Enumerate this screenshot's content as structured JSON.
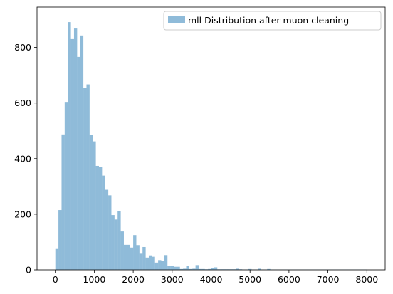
{
  "chart_data": {
    "type": "bar",
    "subtype": "histogram",
    "title": "",
    "xlabel": "",
    "ylabel": "",
    "xlim": [
      -470,
      8470
    ],
    "ylim": [
      0,
      945
    ],
    "x_ticks": [
      0,
      1000,
      2000,
      3000,
      4000,
      5000,
      6000,
      7000,
      8000
    ],
    "y_ticks": [
      0,
      200,
      400,
      600,
      800
    ],
    "grid": false,
    "legend_position": "top-right",
    "bin_width": 80,
    "bin_start": 0,
    "series": [
      {
        "name": "mll Distribution after muon cleaning",
        "color": "#1f77b4",
        "opacity": 0.5,
        "values": [
          75,
          215,
          487,
          604,
          891,
          830,
          868,
          766,
          843,
          655,
          667,
          485,
          462,
          374,
          371,
          339,
          288,
          268,
          197,
          181,
          211,
          138,
          90,
          90,
          80,
          125,
          89,
          58,
          82,
          44,
          52,
          47,
          26,
          35,
          33,
          53,
          14,
          15,
          11,
          11,
          3,
          4,
          14,
          3,
          4,
          17,
          3,
          3,
          2,
          3,
          7,
          9,
          2,
          2,
          2,
          2,
          2,
          2,
          4,
          2,
          1,
          1,
          3,
          1,
          1,
          4,
          1,
          1,
          3,
          1,
          1,
          1,
          1,
          1,
          1,
          1,
          1,
          1,
          1,
          1,
          1,
          1,
          1,
          1,
          1,
          1,
          1,
          1,
          1,
          1,
          1,
          1,
          1,
          1,
          1,
          1,
          1,
          1,
          1,
          1
        ]
      }
    ]
  }
}
